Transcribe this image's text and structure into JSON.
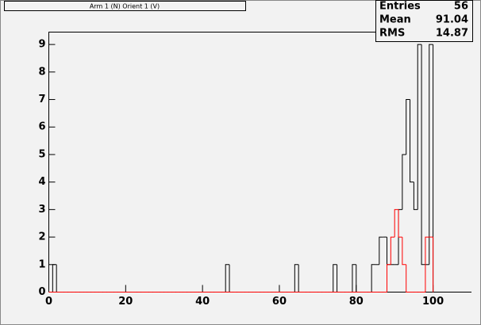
{
  "chart_data": {
    "type": "histogram",
    "title": "Arm 1 (N) Orient 1 (V)",
    "bins": [
      0,
      1,
      2,
      3,
      4,
      5,
      6,
      7,
      8,
      9,
      10,
      11,
      12,
      13,
      14,
      15,
      16,
      17,
      18,
      19,
      20,
      21,
      22,
      23,
      24,
      25,
      26,
      27,
      28,
      29,
      30,
      31,
      32,
      33,
      34,
      35,
      36,
      37,
      38,
      39,
      40,
      41,
      42,
      43,
      44,
      45,
      46,
      47,
      48,
      49,
      50,
      51,
      52,
      53,
      54,
      55,
      56,
      57,
      58,
      59,
      60,
      61,
      62,
      63,
      64,
      65,
      66,
      67,
      68,
      69,
      70,
      71,
      72,
      73,
      74,
      75,
      76,
      77,
      78,
      79,
      80,
      81,
      82,
      83,
      84,
      85,
      86,
      87,
      88,
      89,
      90,
      91,
      92,
      93,
      94,
      95,
      96,
      97,
      98,
      99,
      100
    ],
    "series": [
      {
        "color": "#000000",
        "values": [
          0,
          1,
          0,
          0,
          0,
          0,
          0,
          0,
          0,
          0,
          0,
          0,
          0,
          0,
          0,
          0,
          0,
          0,
          0,
          0,
          0,
          0,
          0,
          0,
          0,
          0,
          0,
          0,
          0,
          0,
          0,
          0,
          0,
          0,
          0,
          0,
          0,
          0,
          0,
          0,
          0,
          0,
          0,
          0,
          0,
          0,
          1,
          0,
          0,
          0,
          0,
          0,
          0,
          0,
          0,
          0,
          0,
          0,
          0,
          0,
          0,
          0,
          0,
          0,
          1,
          0,
          0,
          0,
          0,
          0,
          0,
          0,
          0,
          0,
          1,
          0,
          0,
          0,
          0,
          1,
          0,
          0,
          0,
          0,
          1,
          1,
          2,
          2,
          1,
          1,
          1,
          3,
          5,
          7,
          4,
          3,
          9,
          1,
          1,
          9
        ]
      },
      {
        "color": "#ff0000",
        "values": [
          0,
          0,
          0,
          0,
          0,
          0,
          0,
          0,
          0,
          0,
          0,
          0,
          0,
          0,
          0,
          0,
          0,
          0,
          0,
          0,
          0,
          0,
          0,
          0,
          0,
          0,
          0,
          0,
          0,
          0,
          0,
          0,
          0,
          0,
          0,
          0,
          0,
          0,
          0,
          0,
          0,
          0,
          0,
          0,
          0,
          0,
          0,
          0,
          0,
          0,
          0,
          0,
          0,
          0,
          0,
          0,
          0,
          0,
          0,
          0,
          0,
          0,
          0,
          0,
          0,
          0,
          0,
          0,
          0,
          0,
          0,
          0,
          0,
          0,
          0,
          0,
          0,
          0,
          0,
          0,
          0,
          0,
          0,
          0,
          0,
          0,
          0,
          0,
          1,
          2,
          3,
          2,
          1,
          0,
          0,
          0,
          0,
          0,
          2,
          2
        ]
      }
    ],
    "xlim": [
      0,
      110
    ],
    "xticks": [
      0,
      20,
      40,
      60,
      80,
      100
    ],
    "ylim": [
      0,
      9.45
    ],
    "yticks": [
      0,
      1,
      2,
      3,
      4,
      5,
      6,
      7,
      8,
      9
    ],
    "stats": [
      {
        "label": "Entries",
        "value": 56
      },
      {
        "label": "Mean",
        "value": 91.04
      },
      {
        "label": "RMS",
        "value": 14.87
      }
    ]
  }
}
